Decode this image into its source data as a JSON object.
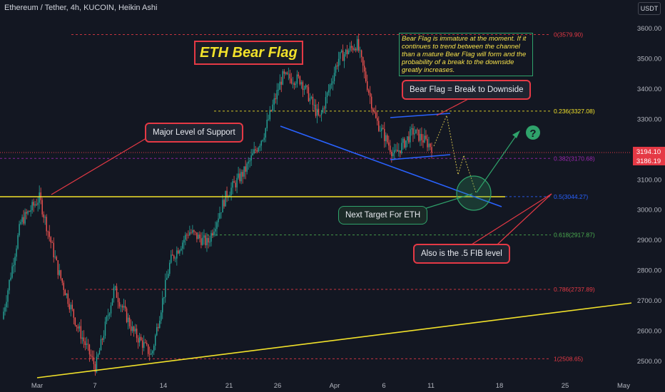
{
  "header": {
    "title": "Ethereum / Tether, 4h, KUCOIN, Heikin Ashi",
    "currency": "USDT"
  },
  "annotations": {
    "title": "ETH Bear Flag",
    "note": "Bear Flag is immature at the moment. If it continues to trend between the channel than a mature Bear Flag will form and the probability of a break to the downside greatly increases.",
    "callout_flag": "Bear Flag = Break to Downside",
    "callout_support": "Major Level of Support",
    "callout_target": "Next Target For ETH",
    "callout_fib": "Also is the .5 FIB level",
    "question_mark": "?"
  },
  "price_tags": {
    "last": "3194.10",
    "prev": "3186.19"
  },
  "chart_data": {
    "type": "candlestick",
    "title": "",
    "xlabel": "",
    "ylabel": "",
    "ylim": [
      2470,
      3650
    ],
    "grid": false,
    "y_ticks": [
      "2500.00",
      "2600.00",
      "2700.00",
      "2800.00",
      "2900.00",
      "3000.00",
      "3100.00",
      "3200.00",
      "3300.00",
      "3400.00",
      "3500.00",
      "3600.00"
    ],
    "x_ticks": [
      "Mar",
      "7",
      "14",
      "21",
      "26",
      "Apr",
      "6",
      "11",
      "18",
      "25",
      "May"
    ],
    "fib_levels": [
      {
        "label": "0(3579.90)",
        "value": 3579.9,
        "color": "#e53945"
      },
      {
        "label": "0.236(3327.08)",
        "value": 3327.08,
        "color": "#f2e22a"
      },
      {
        "label": "0.382(3170.68)",
        "value": 3170.68,
        "color": "#9c27b0"
      },
      {
        "label": "0.5(3044.27)",
        "value": 3044.27,
        "color": "#2962ff"
      },
      {
        "label": "0.618(2917.87)",
        "value": 2917.87,
        "color": "#4caf50"
      },
      {
        "label": "0.786(2737.89)",
        "value": 2737.89,
        "color": "#e53945"
      },
      {
        "label": "1(2508.65)",
        "value": 2508.65,
        "color": "#e53945"
      }
    ],
    "support_level": 3040,
    "trendline": {
      "x": [
        "Mar",
        "May"
      ],
      "y": [
        2480,
        2690
      ]
    },
    "price_path": [
      {
        "date": "Feb 25",
        "price": 2640
      },
      {
        "date": "Feb 28",
        "price": 2960
      },
      {
        "date": "Mar 1",
        "price": 3040
      },
      {
        "date": "Mar 3",
        "price": 2800
      },
      {
        "date": "Mar 5",
        "price": 2620
      },
      {
        "date": "Mar 7",
        "price": 2480
      },
      {
        "date": "Mar 9",
        "price": 2740
      },
      {
        "date": "Mar 11",
        "price": 2600
      },
      {
        "date": "Mar 14",
        "price": 2520
      },
      {
        "date": "Mar 17",
        "price": 2830
      },
      {
        "date": "Mar 20",
        "price": 2930
      },
      {
        "date": "Mar 21",
        "price": 2890
      },
      {
        "date": "Mar 24",
        "price": 3050
      },
      {
        "date": "Mar 26",
        "price": 3130
      },
      {
        "date": "Mar 28",
        "price": 3250
      },
      {
        "date": "Mar 30",
        "price": 3440
      },
      {
        "date": "Apr 1",
        "price": 3430
      },
      {
        "date": "Apr 2",
        "price": 3300
      },
      {
        "date": "Apr 3",
        "price": 3500
      },
      {
        "date": "Apr 5",
        "price": 3550
      },
      {
        "date": "Apr 6",
        "price": 3300
      },
      {
        "date": "Apr 7",
        "price": 3180
      },
      {
        "date": "Apr 9",
        "price": 3260
      },
      {
        "date": "Apr 11",
        "price": 3210
      }
    ]
  }
}
